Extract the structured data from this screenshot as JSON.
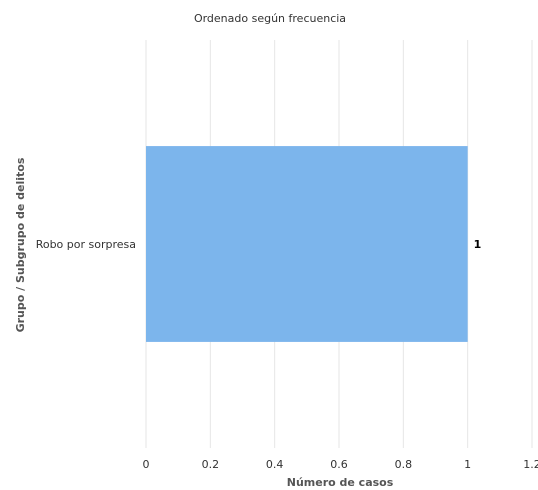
{
  "chart_data": {
    "type": "bar",
    "orientation": "horizontal",
    "subtitle": "Ordenado según frecuencia",
    "xlabel": "Número de casos",
    "ylabel": "Grupo / Subgrupo de delitos",
    "categories": [
      "Robo por sorpresa"
    ],
    "values": [
      1
    ],
    "data_labels": [
      "1"
    ],
    "xlim": [
      0,
      1.2
    ],
    "x_ticks": [
      "0",
      "0.2",
      "0.4",
      "0.6",
      "0.8",
      "1",
      "1.2"
    ],
    "grid": true,
    "legend": "none",
    "colors": {
      "bar": "#7cb5ec",
      "grid": "#e6e6e6",
      "text": "#333333",
      "axis_title": "#555555"
    }
  }
}
